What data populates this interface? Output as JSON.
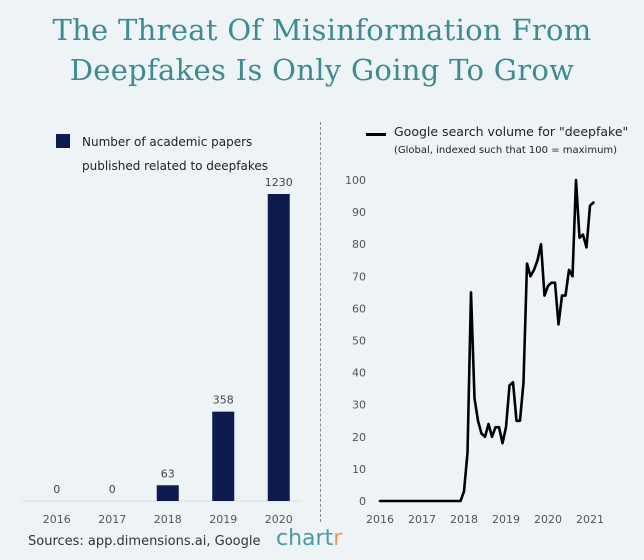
{
  "title": {
    "line1": "The Threat Of Misinformation From",
    "line2": "Deepfakes Is Only Going To Grow"
  },
  "colors": {
    "title": "#3d8b93",
    "bar": "#0d1b4f",
    "line": "#000000",
    "background": "#eef3f6"
  },
  "source": "Sources: app.dimensions.ai, Google",
  "brand": {
    "main": "chart",
    "accent": "r"
  },
  "chart_data": [
    {
      "type": "bar",
      "legend": "Number of academic papers published related to deepfakes",
      "legend_lines": [
        "Number of academic papers",
        "published related to deepfakes"
      ],
      "categories": [
        "2016",
        "2017",
        "2018",
        "2019",
        "2020"
      ],
      "values": [
        0,
        0,
        63,
        358,
        1230
      ],
      "ylim": [
        0,
        1230
      ],
      "grid": false,
      "legend_placement": "top-left"
    },
    {
      "type": "line",
      "legend": "Google search volume for \"deepfake\"",
      "legend_note": "(Global, indexed such that 100 = maximum)",
      "series": [
        {
          "name": "Google search volume for \"deepfake\"",
          "x": [
            "2016-01",
            "2016-06",
            "2017-01",
            "2017-06",
            "2017-10",
            "2017-12",
            "2018-01",
            "2018-02",
            "2018-03",
            "2018-04",
            "2018-05",
            "2018-06",
            "2018-07",
            "2018-08",
            "2018-09",
            "2018-10",
            "2018-11",
            "2018-12",
            "2019-01",
            "2019-02",
            "2019-03",
            "2019-04",
            "2019-05",
            "2019-06",
            "2019-07",
            "2019-08",
            "2019-09",
            "2019-10",
            "2019-11",
            "2019-12",
            "2020-01",
            "2020-02",
            "2020-03",
            "2020-04",
            "2020-05",
            "2020-06",
            "2020-07",
            "2020-08",
            "2020-09",
            "2020-10",
            "2020-11",
            "2020-12",
            "2021-01",
            "2021-02"
          ],
          "y": [
            0,
            0,
            0,
            0,
            0,
            0,
            3,
            15,
            65,
            32,
            25,
            21,
            20,
            24,
            20,
            23,
            23,
            18,
            23,
            36,
            37,
            25,
            25,
            37,
            74,
            70,
            72,
            75,
            80,
            64,
            67,
            68,
            68,
            55,
            64,
            64,
            72,
            70,
            100,
            82,
            83,
            79,
            92,
            93
          ]
        }
      ],
      "x_ticks": [
        "2016",
        "2017",
        "2018",
        "2019",
        "2020",
        "2021"
      ],
      "y_ticks": [
        "0",
        "10",
        "20",
        "30",
        "40",
        "50",
        "60",
        "70",
        "80",
        "90",
        "100"
      ],
      "ylim": [
        0,
        100
      ],
      "grid": false,
      "legend_placement": "top"
    }
  ]
}
